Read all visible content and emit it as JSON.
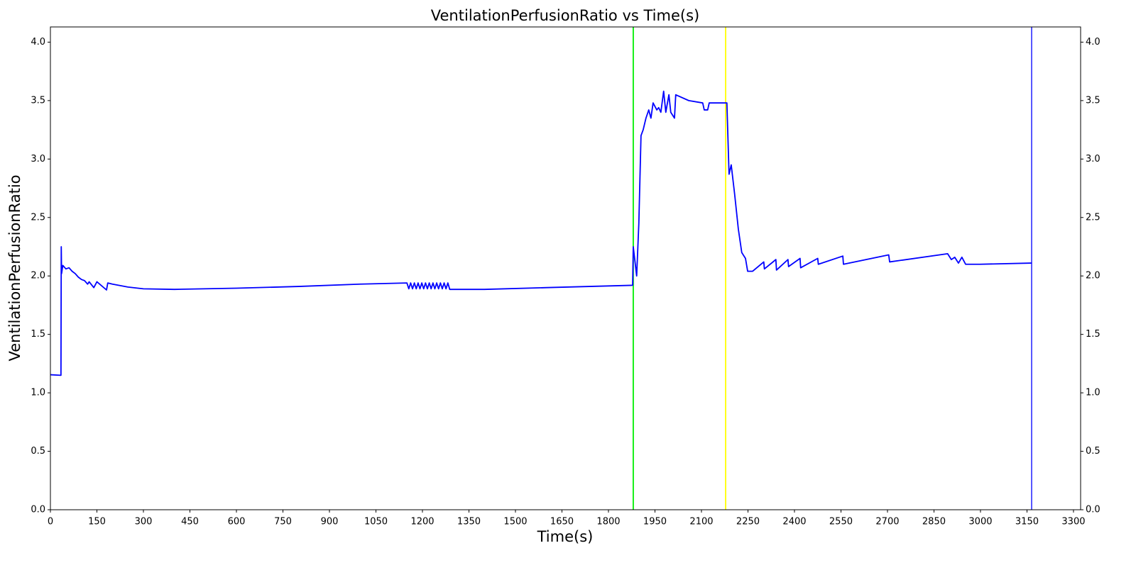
{
  "chart_data": {
    "type": "line",
    "title": "VentilationPerfusionRatio vs Time(s)",
    "x_label": "Time(s)",
    "y_label": "VentilationPerfusionRatio",
    "x": [
      0,
      34,
      35,
      36,
      40,
      50,
      60,
      70,
      80,
      90,
      100,
      110,
      120,
      125,
      140,
      150,
      181,
      185,
      200,
      250,
      300,
      400,
      600,
      800,
      1000,
      1150,
      1156,
      1162,
      1168,
      1174,
      1180,
      1186,
      1192,
      1198,
      1204,
      1210,
      1216,
      1222,
      1228,
      1234,
      1240,
      1246,
      1252,
      1258,
      1264,
      1270,
      1276,
      1282,
      1288,
      1400,
      1600,
      1878,
      1880,
      1891,
      1898,
      1905,
      1912,
      1921,
      1930,
      1937,
      1944,
      1956,
      1962,
      1969,
      1978,
      1985,
      1995,
      2001,
      2013,
      2017,
      2059,
      2104,
      2109,
      2120,
      2125,
      2173,
      2182,
      2189,
      2196,
      2207,
      2219,
      2230,
      2242,
      2249,
      2265,
      2301,
      2303,
      2340,
      2342,
      2379,
      2381,
      2418,
      2420,
      2475,
      2477,
      2556,
      2558,
      2704,
      2707,
      2894,
      2906,
      2917,
      2929,
      2940,
      2952,
      2998,
      3165
    ],
    "series": [
      {
        "name": "VentilationPerfusionRatio",
        "color": "#0000ff",
        "values": [
          1.155,
          1.15,
          2.25,
          2.02,
          2.09,
          2.06,
          2.07,
          2.04,
          2.02,
          1.99,
          1.97,
          1.96,
          1.93,
          1.95,
          1.9,
          1.95,
          1.88,
          1.94,
          1.93,
          1.905,
          1.89,
          1.885,
          1.895,
          1.91,
          1.93,
          1.94,
          1.89,
          1.94,
          1.89,
          1.94,
          1.89,
          1.94,
          1.89,
          1.94,
          1.89,
          1.94,
          1.89,
          1.94,
          1.89,
          1.94,
          1.89,
          1.94,
          1.89,
          1.94,
          1.89,
          1.94,
          1.89,
          1.94,
          1.885,
          1.885,
          1.9,
          1.92,
          2.25,
          2.0,
          2.45,
          3.2,
          3.25,
          3.35,
          3.42,
          3.35,
          3.48,
          3.42,
          3.44,
          3.4,
          3.58,
          3.4,
          3.55,
          3.4,
          3.35,
          3.55,
          3.5,
          3.48,
          3.42,
          3.42,
          3.48,
          3.48,
          3.48,
          2.87,
          2.95,
          2.7,
          2.4,
          2.2,
          2.15,
          2.04,
          2.04,
          2.12,
          2.06,
          2.14,
          2.05,
          2.14,
          2.08,
          2.15,
          2.07,
          2.15,
          2.1,
          2.17,
          2.1,
          2.18,
          2.12,
          2.19,
          2.14,
          2.16,
          2.11,
          2.16,
          2.1,
          2.1,
          2.11
        ]
      }
    ],
    "vlines": [
      {
        "x": 1880,
        "color": "#00ee00"
      },
      {
        "x": 2178,
        "color": "#ffff00"
      },
      {
        "x": 3165,
        "color": "#4444ff"
      }
    ],
    "xlim": [
      0,
      3323
    ],
    "xticks": [
      0,
      150,
      300,
      450,
      600,
      750,
      900,
      1050,
      1200,
      1350,
      1500,
      1650,
      1800,
      1950,
      2100,
      2250,
      2400,
      2550,
      2700,
      2850,
      3000,
      3150,
      3300
    ],
    "ylim": [
      0,
      4.13
    ],
    "yticks": [
      {
        "value": 0,
        "label": "0.0"
      },
      0.5,
      {
        "value": 1,
        "label": "1.0"
      },
      1.5,
      {
        "value": 2,
        "label": "2.0"
      },
      2.5,
      {
        "value": 3,
        "label": "3.0"
      },
      3.5,
      {
        "value": 4,
        "label": "4.0"
      }
    ],
    "y2lim": [
      0,
      4.13
    ],
    "y2ticks": [
      {
        "value": 0,
        "label": "0.0"
      },
      0.5,
      {
        "value": 1,
        "label": "1.0"
      },
      1.5,
      {
        "value": 2,
        "label": "2.0"
      },
      2.5,
      {
        "value": 3,
        "label": "3.0"
      },
      3.5,
      {
        "value": 4,
        "label": "4.0"
      }
    ]
  }
}
